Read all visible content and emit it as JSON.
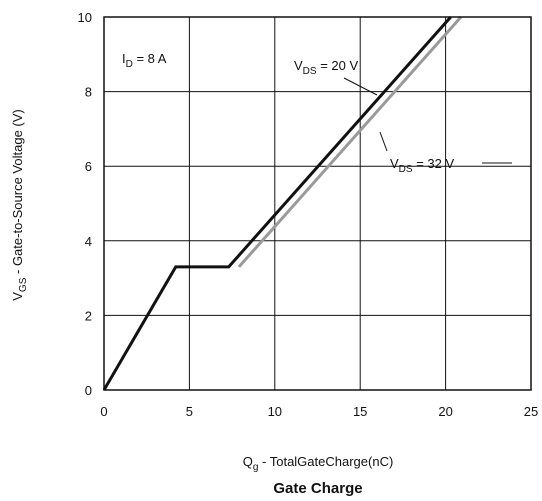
{
  "chart_data": {
    "type": "line",
    "title": "Gate Charge",
    "xlabel": {
      "main": "Q",
      "sub": "g",
      "rest": " - TotalGateCharge(nC)"
    },
    "ylabel": {
      "main": "V",
      "sub": "GS",
      "rest": " - Gate-to-Source Voltage (V)"
    },
    "xlim": [
      0,
      25
    ],
    "ylim": [
      0,
      10
    ],
    "x_ticks": [
      0,
      5,
      10,
      15,
      20,
      25
    ],
    "y_ticks": [
      0,
      2,
      4,
      6,
      8,
      10
    ],
    "grid": true,
    "condition": {
      "main": "I",
      "sub": "D",
      "rest": " =   8  A"
    },
    "series": [
      {
        "name": "VDS = 20 V",
        "label": {
          "main": "V",
          "sub": "DS",
          "rest": " = 20 V"
        },
        "color": "#111111",
        "x": [
          0,
          4.2,
          7.3,
          20.3
        ],
        "y": [
          0,
          3.3,
          3.3,
          10
        ]
      },
      {
        "name": "VDS = 32 V",
        "label": {
          "main": "V",
          "sub": "DS",
          "rest": " = 32 V"
        },
        "color": "#9a9a9a",
        "x": [
          7.9,
          20.9
        ],
        "y": [
          3.3,
          10
        ]
      }
    ]
  }
}
